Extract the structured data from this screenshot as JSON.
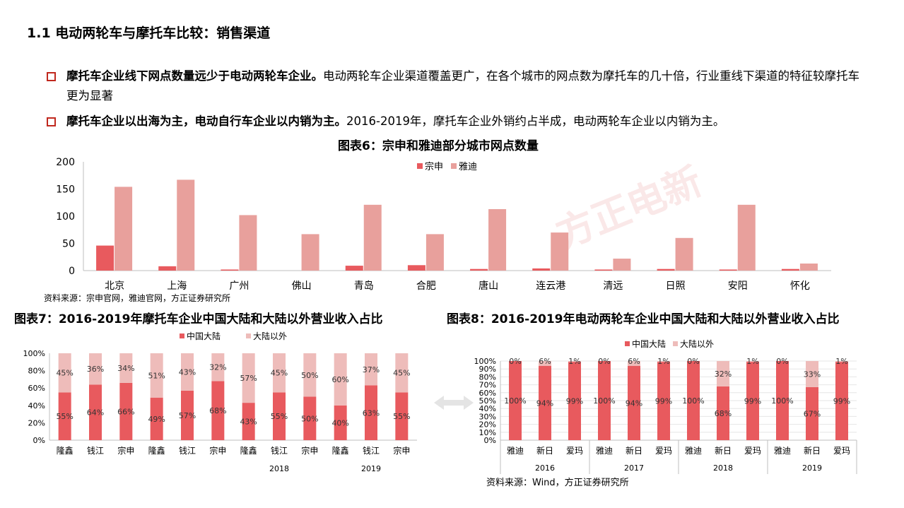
{
  "page_title": "1.1 电动两轮车与摩托车比较：销售渠道",
  "bullets": [
    {
      "bold": "摩托车企业线下网点数量远少于电动两轮车企业。",
      "text": "电动两轮车企业渠道覆盖更广，在各个城市的网点数为摩托车的几十倍，行业重线下渠道的特征较摩托车更为显著"
    },
    {
      "bold": "摩托车企业以出海为主，电动自行车企业以内销为主。",
      "text": "2016-2019年，摩托车企业外销约占半成，电动两轮车企业以内销为主。"
    }
  ],
  "watermark": "方正电新",
  "colors": {
    "primary": "#e85a5e",
    "secondary": "#e8a09c",
    "secondary_light": "#eebcba",
    "bullet": "#c0281e"
  },
  "chart_data": [
    {
      "type": "bar",
      "title": "图表6：宗申和雅迪部分城市网点数量",
      "source": "资料来源：宗申官网，雅迪官网，方正证券研究所",
      "categories": [
        "北京",
        "上海",
        "广州",
        "佛山",
        "青岛",
        "合肥",
        "唐山",
        "连云港",
        "清远",
        "日照",
        "安阳",
        "怀化"
      ],
      "series": [
        {
          "name": "宗申",
          "values": [
            46,
            8,
            2,
            0,
            9,
            10,
            3,
            4,
            2,
            3,
            2,
            3
          ]
        },
        {
          "name": "雅迪",
          "values": [
            154,
            167,
            102,
            67,
            121,
            67,
            113,
            70,
            22,
            60,
            121,
            13
          ]
        }
      ],
      "yticks": [
        "0",
        "50",
        "100",
        "150",
        "200"
      ],
      "ylim": [
        0,
        200
      ],
      "legend": "top-center"
    },
    {
      "type": "bar",
      "stacked": true,
      "title": "图表7：2016-2019年摩托车企业中国大陆和大陆以外营业收入占比",
      "categories": [
        "隆鑫",
        "钱江",
        "宗申",
        "隆鑫",
        "钱江",
        "宗申",
        "隆鑫",
        "钱江",
        "宗申",
        "隆鑫",
        "钱江",
        "宗申"
      ],
      "group_labels": [
        "",
        "",
        "2018",
        "2019"
      ],
      "series": [
        {
          "name": "中国大陆",
          "values": [
            55,
            64,
            66,
            49,
            57,
            68,
            43,
            55,
            50,
            40,
            63,
            55
          ]
        },
        {
          "name": "大陆以外",
          "values": [
            45,
            36,
            34,
            51,
            43,
            32,
            57,
            45,
            50,
            60,
            37,
            45
          ]
        }
      ],
      "yticks": [
        "0%",
        "20%",
        "40%",
        "60%",
        "80%",
        "100%"
      ],
      "ylim": [
        0,
        100
      ],
      "legend": "top-center"
    },
    {
      "type": "bar",
      "stacked": true,
      "title": "图表8：2016-2019年电动两轮车企业中国大陆和大陆以外营业收入占比",
      "source": "资料来源：Wind，方正证券研究所",
      "categories": [
        "雅迪",
        "新日",
        "爱玛",
        "雅迪",
        "新日",
        "爱玛",
        "雅迪",
        "新日",
        "爱玛",
        "雅迪",
        "新日",
        "爱玛"
      ],
      "group_labels": [
        "2016",
        "2017",
        "2018",
        "2019"
      ],
      "series": [
        {
          "name": "中国大陆",
          "values": [
            100,
            94,
            99,
            100,
            94,
            99,
            100,
            68,
            99,
            100,
            67,
            99
          ]
        },
        {
          "name": "大陆以外",
          "values": [
            0,
            6,
            1,
            0,
            6,
            1,
            0,
            32,
            1,
            0,
            33,
            1
          ]
        }
      ],
      "yticks": [
        "0%",
        "10%",
        "20%",
        "30%",
        "40%",
        "50%",
        "60%",
        "70%",
        "80%",
        "90%",
        "100%"
      ],
      "ylim": [
        0,
        100
      ],
      "legend": "top-center"
    }
  ]
}
